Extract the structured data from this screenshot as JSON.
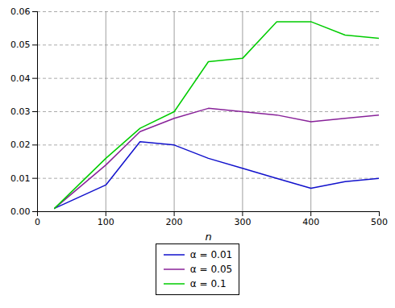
{
  "chart_data": {
    "type": "line",
    "xlabel": "n",
    "x": [
      25,
      100,
      150,
      200,
      250,
      300,
      350,
      400,
      450,
      500
    ],
    "series": [
      {
        "name": "α = 0.01",
        "color": "#1111cc",
        "values": [
          0.001,
          0.008,
          0.021,
          0.02,
          0.016,
          0.013,
          0.01,
          0.007,
          0.009,
          0.01
        ]
      },
      {
        "name": "α = 0.05",
        "color": "#882299",
        "values": [
          0.001,
          0.014,
          0.024,
          0.028,
          0.031,
          0.03,
          0.029,
          0.027,
          0.028,
          0.029
        ]
      },
      {
        "name": "α = 0.1",
        "color": "#00cc00",
        "values": [
          0.001,
          0.016,
          0.025,
          0.03,
          0.045,
          0.046,
          0.057,
          0.057,
          0.053,
          0.052
        ]
      }
    ],
    "vlines": [
      100,
      200,
      300,
      400
    ],
    "xlim": [
      0,
      500
    ],
    "ylim": [
      0.0,
      0.06
    ],
    "xticks": [
      0,
      100,
      200,
      300,
      400,
      500
    ],
    "yticks": [
      {
        "value": 0.0,
        "label": "0.00"
      },
      {
        "value": 0.01,
        "label": "0.01"
      },
      {
        "value": 0.02,
        "label": "0.02"
      },
      {
        "value": 0.03,
        "label": "0.03"
      },
      {
        "value": 0.04,
        "label": "0.04"
      },
      {
        "value": 0.05,
        "label": "0.05"
      },
      {
        "value": 0.06,
        "label": "0.06"
      }
    ],
    "grid": true,
    "legend": "bottom"
  }
}
